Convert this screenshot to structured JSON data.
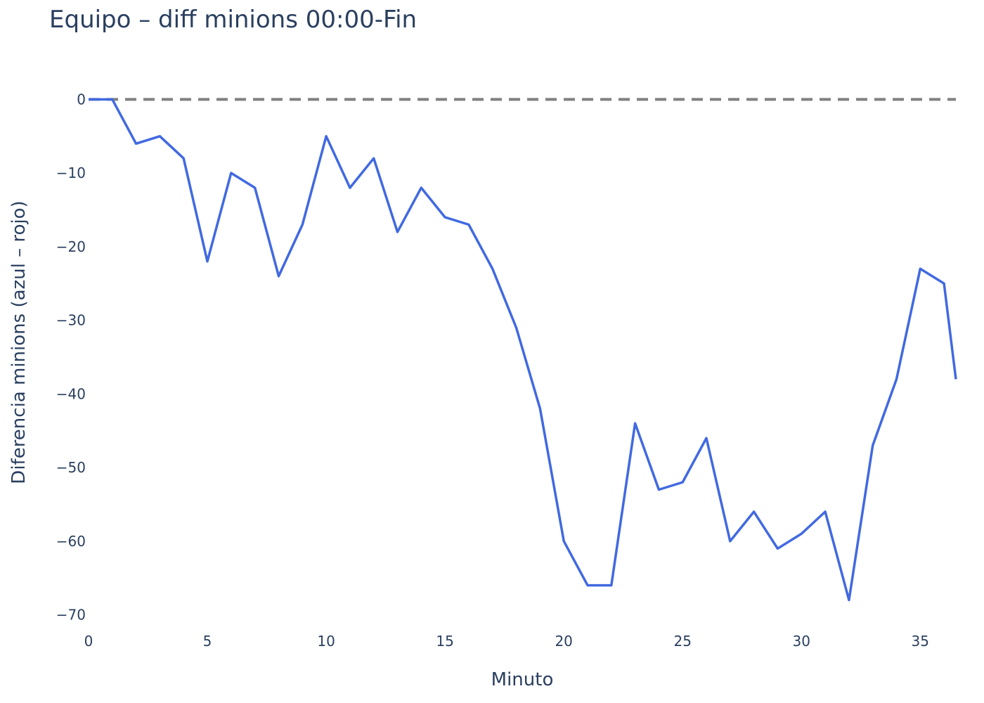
{
  "chart_data": {
    "type": "line",
    "title": "Equipo – diff minions 00:00-Fin",
    "xlabel": "Minuto",
    "ylabel": "Diferencia minions (azul – rojo)",
    "xlim": [
      0,
      36.5
    ],
    "ylim": [
      -71,
      3
    ],
    "x_ticks": [
      0,
      5,
      10,
      15,
      20,
      25,
      30,
      35
    ],
    "y_ticks": [
      0,
      -10,
      -20,
      -30,
      -40,
      -50,
      -60,
      -70
    ],
    "x_tick_labels": [
      "0",
      "5",
      "10",
      "15",
      "20",
      "25",
      "30",
      "35"
    ],
    "y_tick_labels": [
      "0",
      "−10",
      "−20",
      "−30",
      "−40",
      "−50",
      "−60",
      "−70"
    ],
    "grid": false,
    "reference_line": {
      "y": 0,
      "style": "dashed",
      "color": "#808080"
    },
    "series": [
      {
        "color": "#4169E1",
        "x": [
          0,
          1,
          2,
          3,
          4,
          5,
          6,
          7,
          8,
          9,
          10,
          11,
          12,
          13,
          14,
          15,
          16,
          17,
          18,
          19,
          20,
          21,
          22,
          23,
          24,
          25,
          26,
          27,
          28,
          29,
          30,
          31,
          32,
          33,
          34,
          35,
          36,
          36.5
        ],
        "y": [
          0,
          0,
          -6,
          -5,
          -8,
          -22,
          -10,
          -12,
          -24,
          -17,
          -5,
          -12,
          -8,
          -18,
          -12,
          -16,
          -17,
          -23,
          -31,
          -42,
          -60,
          -66,
          -66,
          -44,
          -53,
          -52,
          -46,
          -60,
          -56,
          -61,
          -59,
          -56,
          -68,
          -47,
          -38,
          -23,
          -25,
          -38
        ]
      }
    ]
  }
}
